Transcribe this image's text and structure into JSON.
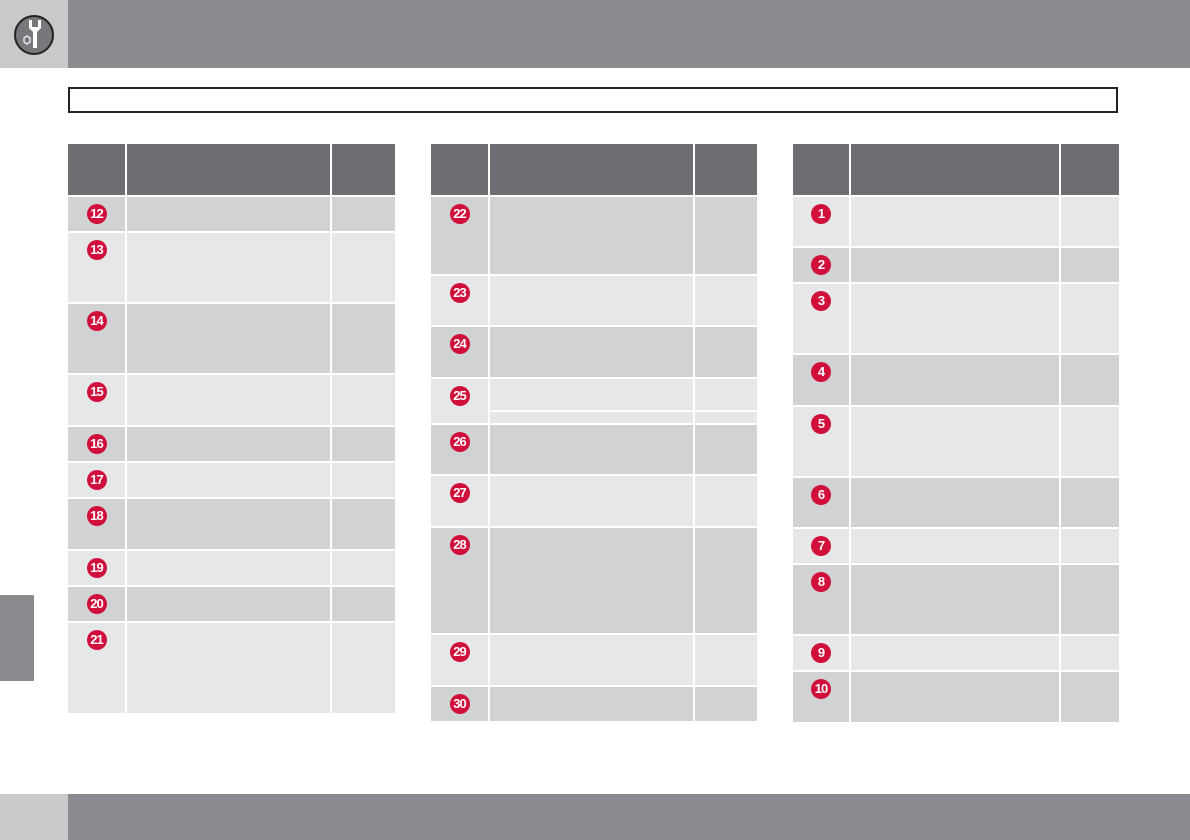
{
  "colors": {
    "header": "#6d6e71",
    "row_dark": "#d1d2d4",
    "row_light": "#e6e7e8",
    "badge": "#d0103a",
    "bar": "#8a8b8f"
  },
  "icons": {
    "section": "wrench-nut-icon"
  },
  "tables": [
    {
      "rows": [
        {
          "num": "12",
          "shade": "dark"
        },
        {
          "num": "13",
          "shade": "light"
        },
        {
          "num": "14",
          "shade": "dark"
        },
        {
          "num": "15",
          "shade": "light"
        },
        {
          "num": "16",
          "shade": "dark"
        },
        {
          "num": "17",
          "shade": "light"
        },
        {
          "num": "18",
          "shade": "dark"
        },
        {
          "num": "19",
          "shade": "light"
        },
        {
          "num": "20",
          "shade": "dark"
        },
        {
          "num": "21",
          "shade": "light"
        }
      ]
    },
    {
      "rows": [
        {
          "num": "22",
          "shade": "dark"
        },
        {
          "num": "23",
          "shade": "light"
        },
        {
          "num": "24",
          "shade": "dark"
        },
        {
          "num": "25",
          "shade": "light"
        },
        {
          "num": "26",
          "shade": "dark"
        },
        {
          "num": "27",
          "shade": "light"
        },
        {
          "num": "28",
          "shade": "dark"
        },
        {
          "num": "29",
          "shade": "light"
        },
        {
          "num": "30",
          "shade": "dark"
        }
      ]
    },
    {
      "rows": [
        {
          "num": "1",
          "shade": "light"
        },
        {
          "num": "2",
          "shade": "dark"
        },
        {
          "num": "3",
          "shade": "light"
        },
        {
          "num": "4",
          "shade": "dark"
        },
        {
          "num": "5",
          "shade": "light"
        },
        {
          "num": "6",
          "shade": "dark"
        },
        {
          "num": "7",
          "shade": "light"
        },
        {
          "num": "8",
          "shade": "dark"
        },
        {
          "num": "9",
          "shade": "light"
        },
        {
          "num": "10",
          "shade": "dark"
        }
      ]
    }
  ]
}
